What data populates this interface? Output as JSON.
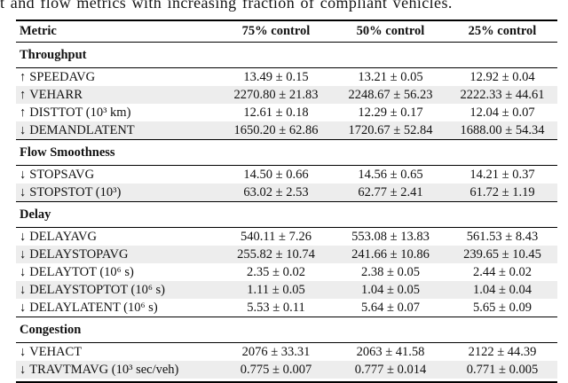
{
  "caption": "t and flow metrics with increasing fraction of compliant vehicles.",
  "colors": {
    "row_shade": "#ededed",
    "rule": "#000000",
    "text": "#111111"
  },
  "table": {
    "columns": [
      "Metric",
      "75% control",
      "50% control",
      "25% control"
    ],
    "sections": [
      {
        "title": "Throughput",
        "rows": [
          {
            "arrow": "↑",
            "metric": "SPEEDAVG",
            "values": [
              "13.49 ± 0.15",
              "13.21 ± 0.05",
              "12.92 ± 0.04"
            ]
          },
          {
            "arrow": "↑",
            "metric": "VEHARR",
            "values": [
              "2270.80 ± 21.83",
              "2248.67 ± 56.23",
              "2222.33 ± 44.61"
            ]
          },
          {
            "arrow": "↑",
            "metric": "DISTTOT (10³ km)",
            "values": [
              "12.61 ± 0.18",
              "12.29 ± 0.17",
              "12.04 ± 0.07"
            ]
          },
          {
            "arrow": "↓",
            "metric": "DEMANDLATENT",
            "values": [
              "1650.20 ± 62.86",
              "1720.67 ± 52.84",
              "1688.00 ± 54.34"
            ]
          }
        ]
      },
      {
        "title": "Flow Smoothness",
        "rows": [
          {
            "arrow": "↓",
            "metric": "STOPSAVG",
            "values": [
              "14.50 ± 0.66",
              "14.56 ± 0.65",
              "14.21 ± 0.37"
            ]
          },
          {
            "arrow": "↓",
            "metric": "STOPSTOT (10³)",
            "values": [
              "63.02 ± 2.53",
              "62.77 ± 2.41",
              "61.72 ± 1.19"
            ]
          }
        ]
      },
      {
        "title": "Delay",
        "rows": [
          {
            "arrow": "↓",
            "metric": "DELAYAVG",
            "values": [
              "540.11 ± 7.26",
              "553.08 ± 13.83",
              "561.53 ± 8.43"
            ]
          },
          {
            "arrow": "↓",
            "metric": "DELAYSTOPAVG",
            "values": [
              "255.82 ± 10.74",
              "241.66 ± 10.86",
              "239.65 ± 10.45"
            ]
          },
          {
            "arrow": "↓",
            "metric": "DELAYTOT (10⁶ s)",
            "values": [
              "2.35 ± 0.02",
              "2.38 ± 0.05",
              "2.44 ± 0.02"
            ]
          },
          {
            "arrow": "↓",
            "metric": "DELAYSTOPTOT (10⁶ s)",
            "values": [
              "1.11 ± 0.05",
              "1.04 ± 0.05",
              "1.04 ± 0.04"
            ]
          },
          {
            "arrow": "↓",
            "metric": "DELAYLATENT (10⁶ s)",
            "values": [
              "5.53 ± 0.11",
              "5.64 ± 0.07",
              "5.65 ± 0.09"
            ]
          }
        ]
      },
      {
        "title": "Congestion",
        "rows": [
          {
            "arrow": "↓",
            "metric": "VEHACT",
            "values": [
              "2076 ± 33.31",
              "2063 ± 41.58",
              "2122 ± 44.39"
            ]
          },
          {
            "arrow": "↓",
            "metric": "TRAVTMAVG (10³ sec/veh)",
            "values": [
              "0.775 ± 0.007",
              "0.777 ± 0.014",
              "0.771 ± 0.005"
            ]
          }
        ]
      }
    ]
  }
}
